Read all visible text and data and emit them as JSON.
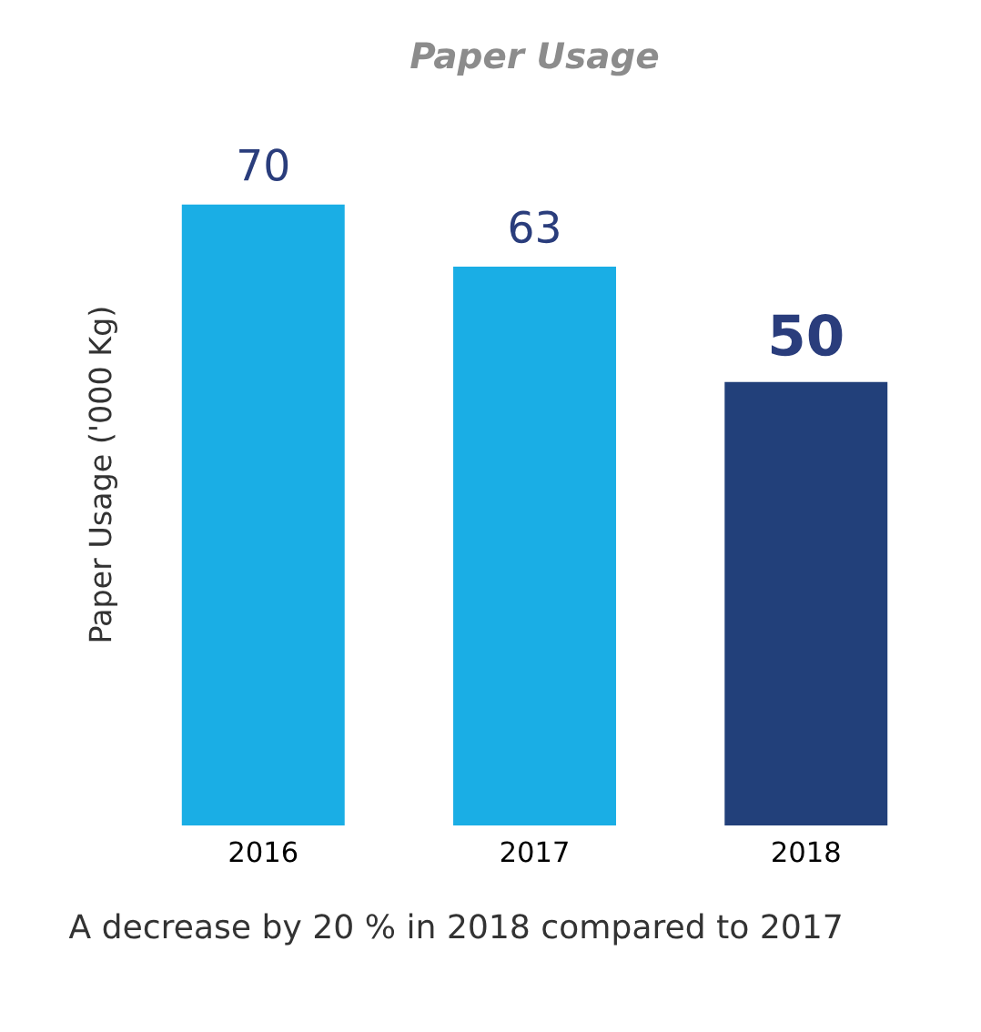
{
  "chart_data": {
    "type": "bar",
    "title": "Paper Usage",
    "ylabel": "Paper Usage ('000 Kg)",
    "categories": [
      "2016",
      "2017",
      "2018"
    ],
    "values": [
      70,
      63,
      50
    ],
    "colors": [
      "#1aaee5",
      "#1aaee5",
      "#22407a"
    ],
    "data_labels": true,
    "annotations": [
      "A decrease by 20 % in 2018 compared to 2017"
    ]
  }
}
